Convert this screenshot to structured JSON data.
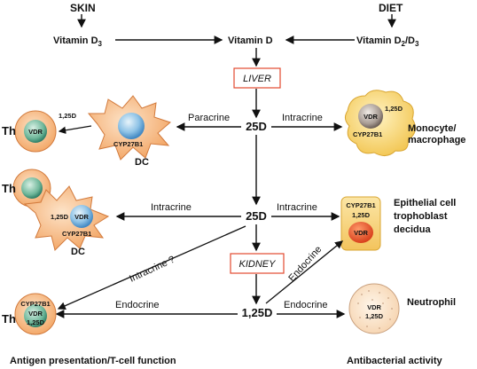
{
  "sources": {
    "skin": "SKIN",
    "diet": "DIET",
    "skin_color": "#e03a2f",
    "diet_color": "#2e8b3a"
  },
  "top_row": {
    "vitamin_d3": "Vitamin D",
    "vitamin_d3_sub": "3",
    "vitamin_d": "Vitamin D",
    "vitamin_d2d3_a": "Vitamin D",
    "vitamin_d2d3_sub1": "2",
    "vitamin_d2d3_mid": "/D",
    "vitamin_d2d3_sub2": "3"
  },
  "organs": {
    "liver": "LIVER",
    "kidney": "KIDNEY",
    "box_color": "#e2492f"
  },
  "metabolites": {
    "d25_top": "25D",
    "d25_mid": "25D",
    "d125_bottom": "1,25D"
  },
  "edges": {
    "paracrine": "Paracrine",
    "intracrine_top_right": "Intracrine",
    "intracrine_mid_left": "Intracrine",
    "intracrine_mid_right": "Intracrine",
    "intracrine_question": "Intracrine ?",
    "endocrine_up": "Endocrine",
    "endocrine_left": "Endocrine",
    "endocrine_right": "Endocrine"
  },
  "cells": {
    "th_top": "Th",
    "th_top_vdr": "VDR",
    "th_top_125d": "1,25D",
    "dc_top": "DC",
    "dc_top_enzyme": "CYP27B1",
    "th_mid": "Th",
    "dc_mid": "DC",
    "dc_mid_vdr": "VDR",
    "dc_mid_125d": "1,25D",
    "dc_mid_enzyme": "CYP27B1",
    "th_bottom": "Th",
    "th_bottom_enzyme": "CYP27B1",
    "th_bottom_vdr": "VDR",
    "th_bottom_125d": "1,25D",
    "monocyte_vdr": "VDR",
    "monocyte_125d": "1,25D",
    "monocyte_enzyme": "CYP27B1",
    "monocyte_label_1": "Monocyte/",
    "monocyte_label_2": "macrophage",
    "epithelial_enzyme": "CYP27B1",
    "epithelial_125d": "1,25D",
    "epithelial_vdr": "VDR",
    "epithelial_label_1": "Epithelial cell",
    "epithelial_label_2": "trophoblast",
    "epithelial_label_3": "decidua",
    "neutrophil_vdr": "VDR",
    "neutrophil_125d": "1,25D",
    "neutrophil_label": "Neutrophil"
  },
  "footer": {
    "left": "Antigen presentation/T-cell function",
    "right": "Antibacterial activity",
    "color": "#2b3f9c"
  }
}
